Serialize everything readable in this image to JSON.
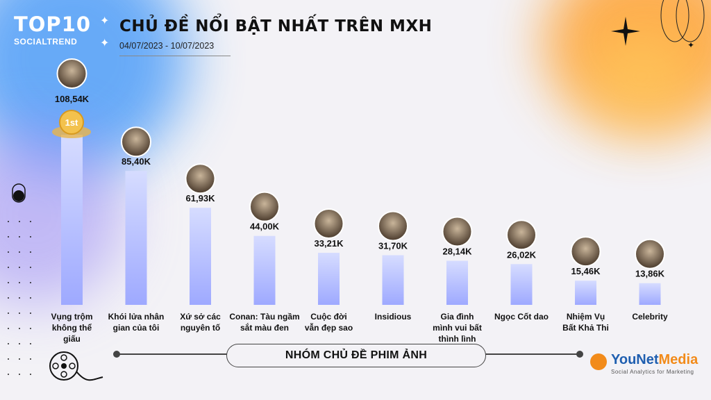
{
  "header": {
    "logo_top": "TOP10",
    "logo_sub": "SOCIALTREND",
    "title": "CHỦ ĐỀ NỔI BẬT NHẤT TRÊN MXH",
    "date_range": "04/07/2023 - 10/07/2023"
  },
  "group_label": "NHÓM CHỦ ĐỀ PHIM ẢNH",
  "brand": {
    "name_a": "YouNet",
    "name_b": "Media",
    "tagline": "Social Analytics for Marketing"
  },
  "rank_badge": "1st",
  "colors": {
    "bar_top": "#d4dcff",
    "bar_bottom": "#9ea9ff",
    "accent_blue": "#4f9ef8",
    "accent_orange": "#ff9f2e"
  },
  "chart_data": {
    "type": "bar",
    "title": "CHỦ ĐỀ NỔI BẬT NHẤT TRÊN MXH",
    "categories": [
      [
        "Vụng trộm",
        "không thể",
        "giấu"
      ],
      [
        "Khói lửa nhân",
        "gian của tôi"
      ],
      [
        "Xứ sở các",
        "nguyên tố"
      ],
      [
        "Conan: Tàu ngầm",
        "sắt màu đen"
      ],
      [
        "Cuộc đời",
        "vẫn đẹp sao"
      ],
      [
        "Insidious"
      ],
      [
        "Gia đình",
        "mình vui bất",
        "thình lình"
      ],
      [
        "Ngọc Cốt dao"
      ],
      [
        "Nhiệm Vụ",
        "Bất Khả Thi"
      ],
      [
        "Celebrity"
      ]
    ],
    "values": [
      108.54,
      85.4,
      61.93,
      44.0,
      33.21,
      31.7,
      28.14,
      26.02,
      15.46,
      13.86
    ],
    "value_labels": [
      "108,54K",
      "85,40K",
      "61,93K",
      "44,00K",
      "33,21K",
      "31,70K",
      "28,14K",
      "26,02K",
      "15,46K",
      "13,86K"
    ],
    "ylim": [
      0,
      108.54
    ],
    "grid": false,
    "legend": "none"
  }
}
